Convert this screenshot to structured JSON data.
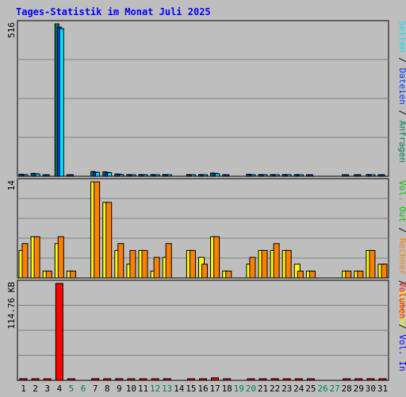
{
  "title": "Tages-Statistik im Monat Juli 2025",
  "colors": {
    "background": "#bebebe",
    "title": "#0000ff",
    "grid": "#808080",
    "hits": "#00805c",
    "files": "#0040ff",
    "pages": "#00e0ff",
    "visits": "#ffff00",
    "sites": "#ff8000",
    "kbytes_in": "#0000ff",
    "kbytes_out": "#00c000",
    "kbytes": "#ff0000",
    "weekday": "#000000",
    "weekend": "#00805c"
  },
  "legend": {
    "top": [
      "Anfragen",
      "Dateien",
      "Seiten"
    ],
    "middle": [
      "Besuche",
      "Rechner",
      "Vol. Out"
    ],
    "bottom": [
      "Vol. In",
      "Volumen"
    ],
    "separator": "/"
  },
  "chart_data": [
    {
      "type": "bar",
      "panel": "top",
      "ymax_label": "516",
      "ylim": [
        0,
        516
      ],
      "categories": [
        "1",
        "2",
        "3",
        "4",
        "5",
        "6",
        "7",
        "8",
        "9",
        "10",
        "11",
        "12",
        "13",
        "14",
        "15",
        "16",
        "17",
        "18",
        "19",
        "20",
        "21",
        "22",
        "23",
        "24",
        "25",
        "26",
        "27",
        "28",
        "29",
        "30",
        "31"
      ],
      "weekend_days": [
        "5",
        "6",
        "12",
        "13",
        "19",
        "20",
        "26",
        "27"
      ],
      "series": [
        {
          "name": "Anfragen",
          "color_key": "hits",
          "values": [
            7,
            10,
            5,
            516,
            4,
            0,
            16,
            15,
            8,
            6,
            6,
            6,
            6,
            0,
            6,
            6,
            11,
            5,
            0,
            7,
            6,
            6,
            6,
            6,
            4,
            0,
            0,
            4,
            4,
            6,
            5
          ]
        },
        {
          "name": "Dateien",
          "color_key": "files",
          "values": [
            6,
            9,
            5,
            505,
            4,
            0,
            14,
            13,
            7,
            5,
            5,
            5,
            5,
            0,
            5,
            5,
            10,
            4,
            0,
            6,
            5,
            5,
            5,
            5,
            3,
            0,
            0,
            3,
            3,
            5,
            4
          ]
        },
        {
          "name": "Seiten",
          "color_key": "pages",
          "values": [
            5,
            8,
            0,
            500,
            0,
            0,
            13,
            12,
            6,
            4,
            4,
            4,
            4,
            0,
            4,
            4,
            9,
            0,
            0,
            5,
            4,
            4,
            4,
            4,
            0,
            0,
            0,
            0,
            0,
            4,
            0
          ]
        }
      ]
    },
    {
      "type": "bar",
      "panel": "middle",
      "ymax_label": "14",
      "ylim": [
        0,
        14
      ],
      "categories": [
        "1",
        "2",
        "3",
        "4",
        "5",
        "6",
        "7",
        "8",
        "9",
        "10",
        "11",
        "12",
        "13",
        "14",
        "15",
        "16",
        "17",
        "18",
        "19",
        "20",
        "21",
        "22",
        "23",
        "24",
        "25",
        "26",
        "27",
        "28",
        "29",
        "30",
        "31"
      ],
      "series": [
        {
          "name": "Besuche",
          "color_key": "visits",
          "values": [
            4,
            6,
            1,
            5,
            1,
            0,
            14,
            11,
            4,
            2,
            4,
            1,
            3,
            0,
            4,
            3,
            6,
            1,
            0,
            2,
            4,
            4,
            4,
            2,
            1,
            0,
            0,
            1,
            1,
            4,
            2
          ]
        },
        {
          "name": "Rechner",
          "color_key": "sites",
          "values": [
            5,
            6,
            1,
            6,
            1,
            0,
            14,
            11,
            5,
            4,
            4,
            3,
            5,
            0,
            4,
            2,
            6,
            1,
            0,
            3,
            4,
            5,
            4,
            1,
            1,
            0,
            0,
            1,
            1,
            4,
            2
          ]
        }
      ]
    },
    {
      "type": "bar",
      "panel": "bottom",
      "ymax_label": "114.76 KB",
      "ylim": [
        0,
        114.76
      ],
      "categories": [
        "1",
        "2",
        "3",
        "4",
        "5",
        "6",
        "7",
        "8",
        "9",
        "10",
        "11",
        "12",
        "13",
        "14",
        "15",
        "16",
        "17",
        "18",
        "19",
        "20",
        "21",
        "22",
        "23",
        "24",
        "25",
        "26",
        "27",
        "28",
        "29",
        "30",
        "31"
      ],
      "series": [
        {
          "name": "Volumen",
          "color_key": "kbytes",
          "values": [
            2,
            2,
            1,
            114.76,
            1,
            0,
            2,
            1.5,
            2,
            1,
            1,
            1,
            2,
            0,
            1,
            1,
            3,
            1,
            0,
            1,
            1,
            2,
            1,
            1,
            1,
            0,
            0,
            1,
            1,
            2,
            1
          ]
        }
      ]
    }
  ]
}
